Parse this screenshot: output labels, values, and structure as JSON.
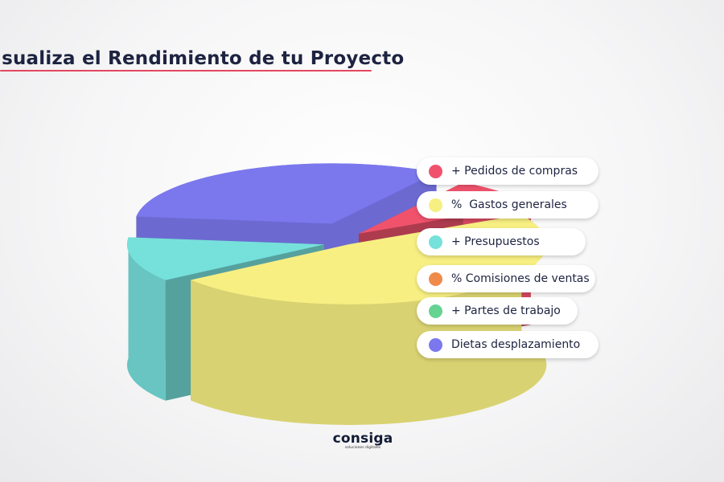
{
  "title": "isualiza el Rendimiento de tu Proyecto",
  "chart_data": {
    "type": "pie",
    "style": "3d-exploded",
    "title": "isualiza el Rendimiento de tu Proyecto",
    "legend": "right",
    "series": [
      {
        "label": "+ Pedidos de compras",
        "value": 8,
        "color": "#f0526c"
      },
      {
        "label": "%  Gastos generales",
        "value": 48,
        "color": "#f7ef82"
      },
      {
        "label": "+ Presupuestos",
        "value": 12,
        "color": "#76e0db"
      },
      {
        "label": "% Comisiones de ventas",
        "value": 0,
        "color": "#f08a4b"
      },
      {
        "label": "+ Partes de trabajo",
        "value": 0,
        "color": "#66d392"
      },
      {
        "label": "Dietas desplazamiento",
        "value": 32,
        "color": "#7b78ee"
      }
    ]
  },
  "logo": {
    "name": "consiga",
    "tagline": "soluciones digitales"
  }
}
